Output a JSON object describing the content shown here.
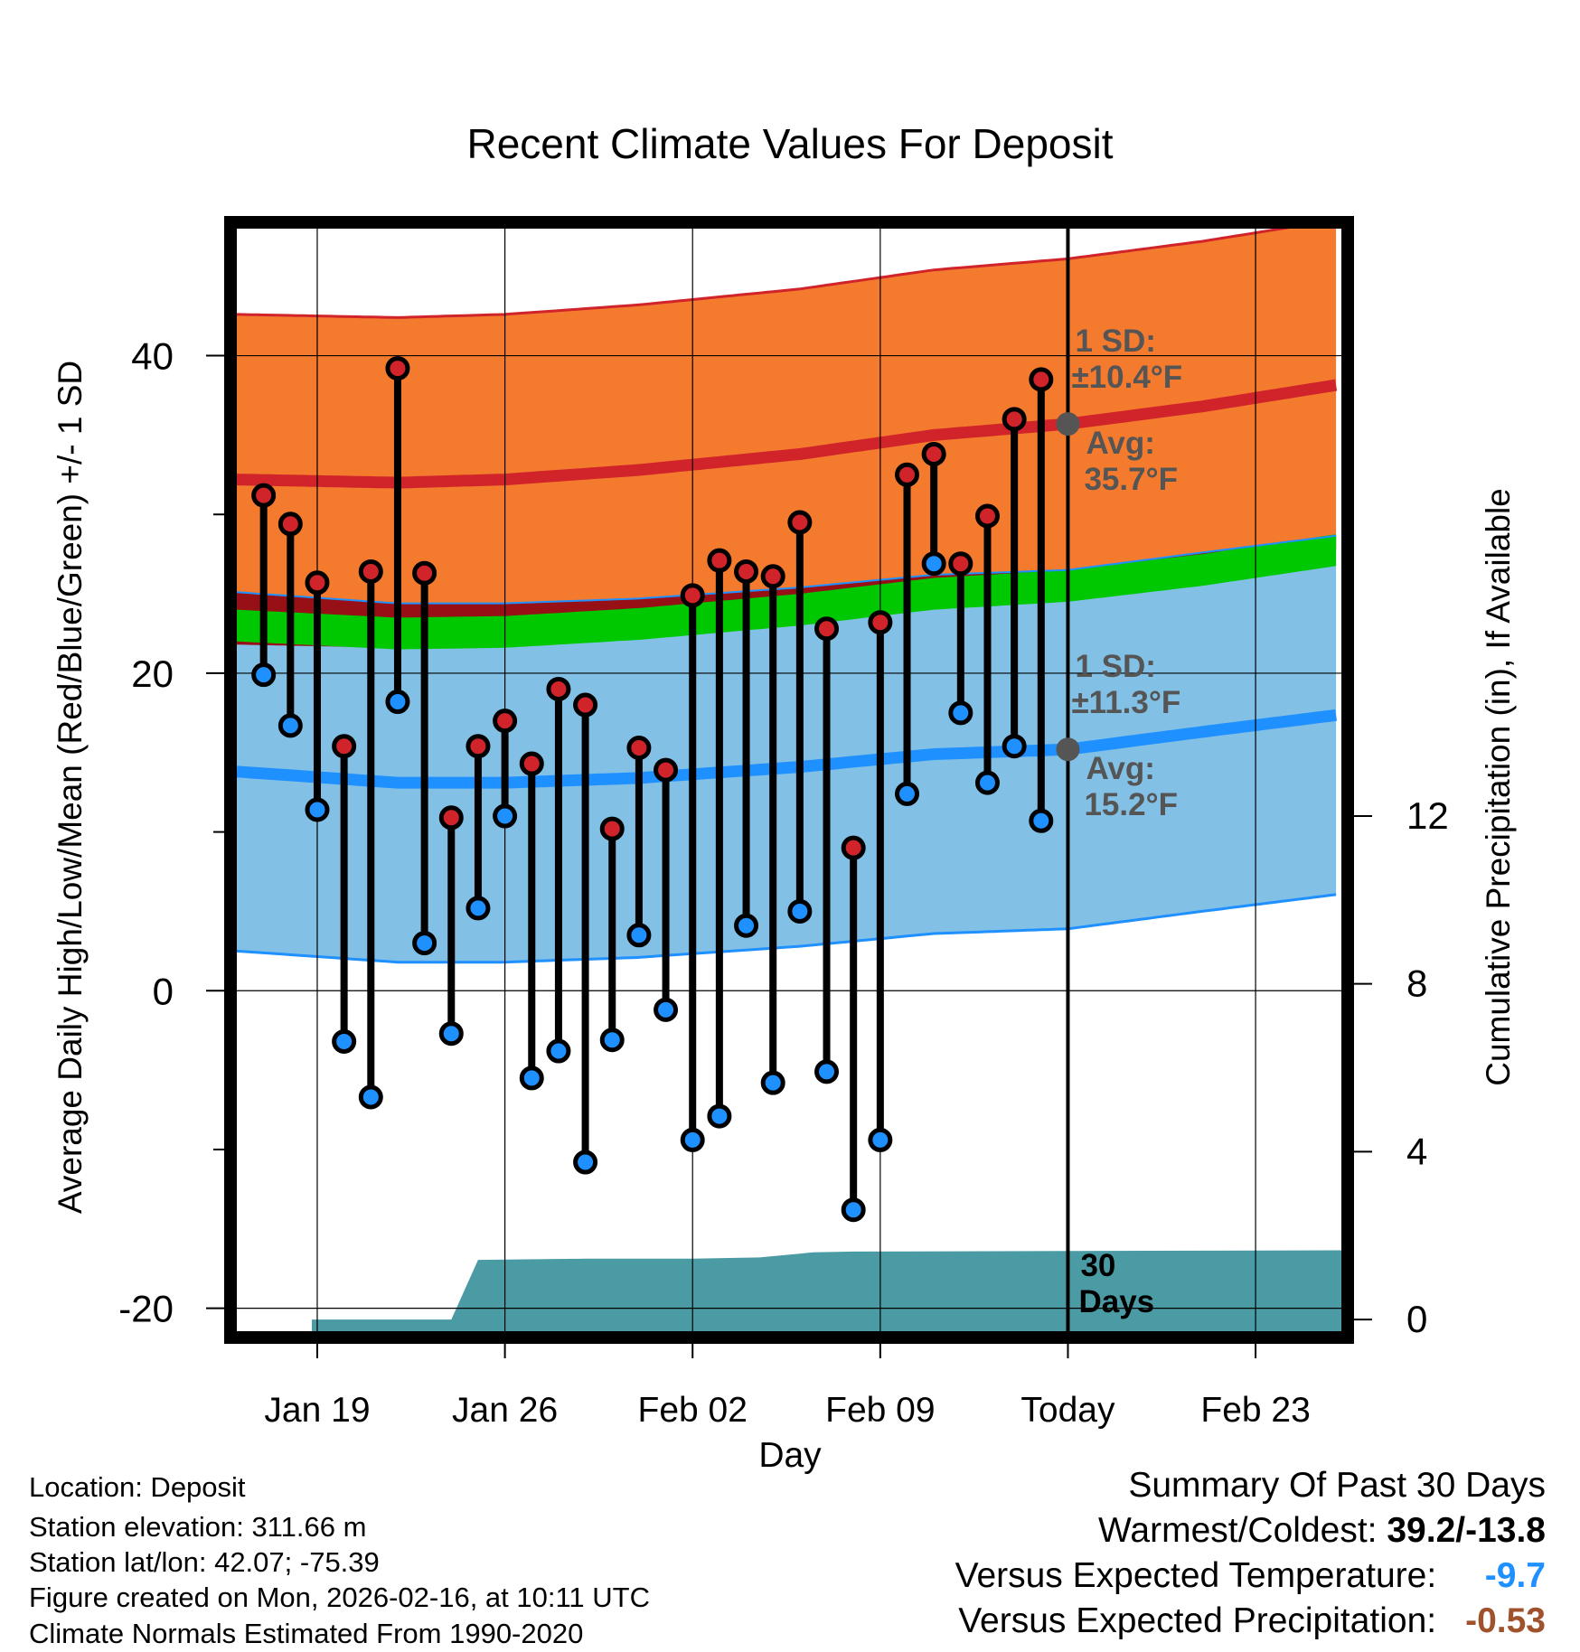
{
  "chart_data": {
    "type": "line",
    "title": "Recent Climate Values For Deposit",
    "xlabel": "Day",
    "ylabel": "Average Daily High/Low/Mean (Red/Blue/Green) +/- 1 SD",
    "y2label": "Cumulative Precipitation (in), If Available",
    "ylim": [
      -21.5,
      48
    ],
    "y2lim": [
      -0.3,
      26
    ],
    "xlim": [
      -3,
      38.2
    ],
    "yticks": [
      -20,
      0,
      20,
      40
    ],
    "y2ticks": [
      0,
      4,
      8,
      12
    ],
    "xticks": [
      {
        "day": 0,
        "label": "Jan 19"
      },
      {
        "day": 7,
        "label": "Jan 26"
      },
      {
        "day": 14,
        "label": "Feb 02"
      },
      {
        "day": 21,
        "label": "Feb 09"
      },
      {
        "day": 28,
        "label": "Today"
      },
      {
        "day": 35,
        "label": "Feb 23"
      }
    ],
    "today_day": 28,
    "normals_days": [
      -3,
      3,
      7,
      12,
      18,
      23,
      28,
      33,
      38.2
    ],
    "normal_high": [
      32.2,
      32.0,
      32.2,
      32.8,
      33.8,
      35.0,
      35.7,
      36.8,
      38.2
    ],
    "normal_high_sd": 10.4,
    "normal_low": [
      13.8,
      13.1,
      13.1,
      13.4,
      14.1,
      14.9,
      15.2,
      16.3,
      17.4
    ],
    "normal_low_sd": 11.3,
    "normal_mean": [
      23.0,
      22.5,
      22.6,
      23.1,
      24.0,
      25.0,
      25.5,
      26.5,
      27.8
    ],
    "normal_mean_band": 1.0,
    "obs_days": [
      -2,
      -1,
      0,
      1,
      2,
      3,
      4,
      5,
      6,
      7,
      8,
      9,
      10,
      11,
      12,
      13,
      14,
      15,
      16,
      17,
      18,
      19,
      20,
      21,
      22,
      23,
      24,
      25,
      26,
      27
    ],
    "obs_high": [
      31.2,
      29.4,
      25.7,
      15.4,
      26.4,
      39.2,
      26.3,
      10.9,
      15.4,
      17.0,
      14.3,
      19.0,
      18.0,
      10.2,
      15.3,
      13.9,
      24.9,
      27.1,
      26.4,
      26.1,
      29.5,
      22.8,
      9.0,
      23.2,
      32.5,
      33.8,
      26.9,
      29.9,
      36.0,
      38.5
    ],
    "obs_low": [
      19.9,
      16.7,
      11.4,
      -3.2,
      -6.7,
      18.2,
      3.0,
      -2.7,
      5.2,
      11.0,
      -5.5,
      -3.8,
      -10.8,
      -3.1,
      3.5,
      -1.2,
      -9.4,
      -7.9,
      4.1,
      -5.8,
      5.0,
      -5.1,
      -13.8,
      -9.4,
      12.4,
      26.9,
      17.5,
      13.1,
      15.4,
      10.7
    ],
    "low_warm_flag": [
      false,
      false,
      false,
      false,
      false,
      false,
      false,
      false,
      false,
      false,
      false,
      false,
      false,
      false,
      false,
      false,
      false,
      false,
      false,
      false,
      false,
      false,
      false,
      false,
      false,
      true,
      false,
      false,
      false,
      false
    ],
    "precip_days": [
      -0.2,
      5,
      6,
      10,
      14,
      16.5,
      18.5,
      20,
      38.2
    ],
    "precip_cum": [
      0.0,
      0.0,
      1.42,
      1.45,
      1.45,
      1.48,
      1.6,
      1.62,
      1.65
    ],
    "annotations": {
      "high_sd_label": "1 SD:",
      "high_sd_value": "±10.4°F",
      "high_avg_label": "Avg:",
      "high_avg_value": "35.7°F",
      "low_sd_label": "1 SD:",
      "low_sd_value": "±11.3°F",
      "low_avg_label": "Avg:",
      "low_avg_value": "15.2°F",
      "days_label_1": "30",
      "days_label_2": "Days"
    },
    "colors": {
      "high_band": "#f47a2e",
      "high_line": "#d0242a",
      "low_band": "#82c0e6",
      "low_line": "#1e90ff",
      "mean_band": "#00c800",
      "overlap": "#961016",
      "precip": "#4a9ba3",
      "annot": "#555555",
      "dot_high": "#d0242a",
      "dot_low": "#1e90ff"
    }
  },
  "info": {
    "location": "Location: Deposit",
    "elevation": "Station elevation: 311.66 m",
    "latlon": "Station lat/lon: 42.07; -75.39",
    "created": "Figure created on Mon, 2026-02-16, at 10:11 UTC",
    "normals": "Climate Normals Estimated From 1990-2020"
  },
  "summary": {
    "heading": "Summary Of Past 30 Days",
    "warm_cold_label": "Warmest/Coldest:",
    "warm_cold_value": "39.2/-13.8",
    "temp_label": "Versus Expected Temperature:",
    "temp_value": "-9.7",
    "temp_color": "#1e90ff",
    "precip_label": "Versus Expected Precipitation:",
    "precip_value": "-0.53",
    "precip_color": "#a0522d"
  }
}
